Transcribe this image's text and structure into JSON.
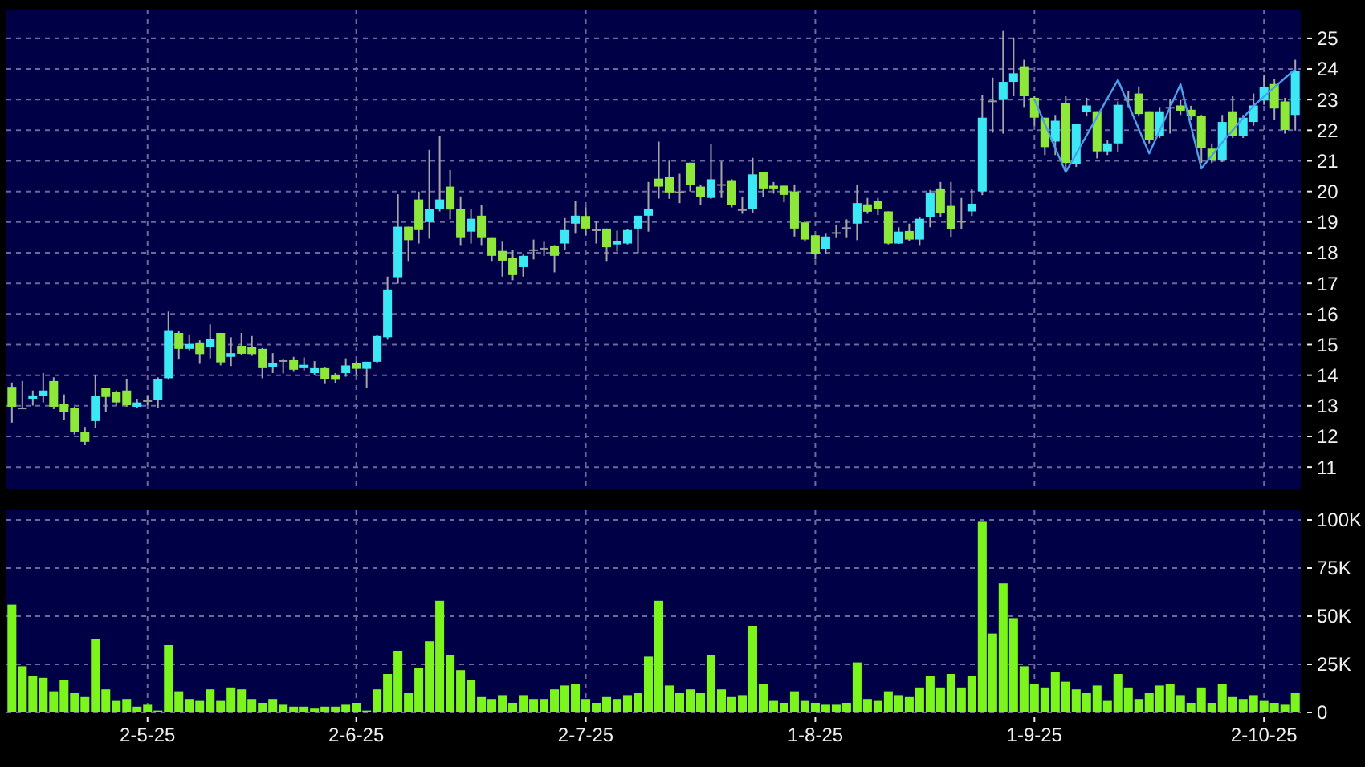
{
  "chart_data": [
    {
      "type": "candlestick",
      "grid": true,
      "ylim": [
        10.27,
        25.94
      ],
      "yticks": [
        11,
        12,
        13,
        14,
        15,
        16,
        17,
        18,
        19,
        20,
        21,
        22,
        23,
        24,
        25
      ],
      "categories": [
        null,
        null,
        null,
        null,
        null,
        null,
        null,
        null,
        null,
        null,
        null,
        null,
        null,
        null,
        null,
        null,
        null,
        null,
        null,
        null,
        null,
        null,
        null,
        null,
        null,
        null,
        null,
        null,
        null,
        null,
        null,
        null,
        null,
        null,
        null,
        null,
        null,
        null,
        null,
        null,
        null,
        null,
        null,
        null,
        null,
        null,
        null,
        null,
        null,
        null,
        null,
        null,
        null,
        null,
        null,
        null,
        null,
        null,
        null,
        null,
        null,
        null,
        null,
        null,
        null,
        null,
        null,
        null,
        null,
        null,
        null,
        null,
        null,
        null,
        null,
        null,
        null,
        null,
        null,
        null,
        null,
        null,
        null,
        null,
        null,
        null,
        null,
        null,
        null,
        null,
        null,
        null,
        null,
        null,
        null,
        null,
        null,
        null,
        null,
        null,
        null,
        null,
        null,
        null,
        null,
        null,
        null,
        null,
        null,
        null,
        null,
        null,
        null,
        null,
        null,
        null,
        null,
        null,
        null,
        null,
        null,
        null,
        null,
        null
      ],
      "series": [
        {
          "ohlc": [
            [
              13.62,
              13.76,
              12.45,
              12.97
            ],
            [
              12.94,
              13.81,
              12.89,
              12.94
            ],
            [
              13.23,
              13.5,
              13.01,
              13.34
            ],
            [
              13.32,
              14.07,
              13.11,
              13.5
            ],
            [
              13.81,
              13.93,
              12.89,
              12.97
            ],
            [
              13.06,
              13.37,
              12.53,
              12.8
            ],
            [
              12.92,
              12.97,
              12.06,
              12.13
            ],
            [
              12.13,
              12.31,
              11.71,
              11.82
            ],
            [
              12.5,
              14.02,
              12.27,
              13.32
            ],
            [
              13.58,
              13.58,
              12.8,
              13.29
            ],
            [
              13.46,
              13.5,
              13.02,
              13.11
            ],
            [
              13.5,
              13.88,
              12.97,
              13.02
            ],
            [
              12.97,
              13.23,
              12.94,
              13.11
            ],
            [
              13.18,
              13.32,
              13.02,
              13.18
            ],
            [
              13.18,
              13.93,
              12.94,
              13.86
            ],
            [
              13.9,
              16.08,
              13.85,
              15.47
            ],
            [
              15.38,
              15.45,
              14.51,
              14.86
            ],
            [
              14.86,
              15.33,
              14.81,
              15.02
            ],
            [
              15.07,
              15.14,
              14.37,
              14.69
            ],
            [
              14.91,
              15.66,
              14.55,
              15.19
            ],
            [
              15.38,
              15.38,
              14.32,
              14.42
            ],
            [
              14.6,
              15.24,
              14.3,
              14.72
            ],
            [
              14.96,
              15.38,
              14.65,
              14.7
            ],
            [
              14.91,
              15.28,
              14.63,
              14.69
            ],
            [
              14.86,
              14.89,
              13.9,
              14.23
            ],
            [
              14.28,
              14.72,
              14.07,
              14.39
            ],
            [
              14.49,
              14.51,
              14.06,
              14.49
            ],
            [
              14.49,
              14.6,
              14.11,
              14.18
            ],
            [
              14.23,
              14.58,
              14.16,
              14.34
            ],
            [
              14.07,
              14.46,
              14.02,
              14.23
            ],
            [
              14.23,
              14.27,
              13.71,
              13.86
            ],
            [
              14.02,
              14.07,
              13.74,
              13.85
            ],
            [
              14.07,
              14.55,
              13.95,
              14.32
            ],
            [
              14.39,
              14.46,
              14.02,
              14.21
            ],
            [
              14.21,
              14.44,
              13.58,
              14.44
            ],
            [
              14.44,
              15.33,
              14.41,
              15.28
            ],
            [
              15.24,
              17.22,
              15.16,
              16.8
            ],
            [
              17.2,
              19.91,
              16.99,
              18.85
            ],
            [
              18.85,
              18.85,
              17.73,
              18.41
            ],
            [
              19.74,
              20.0,
              18.3,
              18.74
            ],
            [
              19.0,
              21.36,
              18.46,
              19.42
            ],
            [
              19.42,
              21.8,
              19.35,
              19.74
            ],
            [
              20.16,
              20.7,
              19.09,
              19.41
            ],
            [
              19.42,
              19.84,
              18.25,
              18.48
            ],
            [
              18.69,
              19.44,
              18.3,
              19.11
            ],
            [
              19.21,
              19.55,
              18.25,
              18.48
            ],
            [
              18.48,
              18.48,
              17.73,
              17.9
            ],
            [
              18.06,
              18.36,
              17.22,
              17.74
            ],
            [
              17.83,
              18.08,
              17.1,
              17.27
            ],
            [
              17.53,
              17.94,
              17.22,
              17.9
            ],
            [
              18.11,
              18.43,
              17.78,
              18.11
            ],
            [
              18.16,
              18.36,
              17.9,
              18.16
            ],
            [
              18.22,
              18.25,
              17.36,
              17.9
            ],
            [
              18.3,
              19.13,
              18.09,
              18.74
            ],
            [
              18.95,
              19.7,
              18.62,
              19.21
            ],
            [
              19.2,
              19.49,
              18.57,
              18.79
            ],
            [
              18.76,
              19.04,
              18.3,
              18.76
            ],
            [
              18.79,
              18.79,
              17.73,
              18.18
            ],
            [
              18.27,
              18.72,
              18.04,
              18.37
            ],
            [
              18.3,
              18.78,
              18.27,
              18.74
            ],
            [
              18.79,
              19.21,
              17.99,
              19.21
            ],
            [
              19.21,
              20.31,
              18.69,
              19.42
            ],
            [
              20.42,
              21.63,
              19.77,
              20.16
            ],
            [
              20.47,
              21.01,
              19.76,
              19.97
            ],
            [
              20.0,
              20.58,
              19.62,
              20.0
            ],
            [
              20.94,
              20.94,
              20.0,
              20.21
            ],
            [
              20.16,
              20.23,
              19.56,
              19.81
            ],
            [
              19.79,
              21.54,
              19.76,
              20.4
            ],
            [
              20.24,
              20.98,
              19.79,
              20.24
            ],
            [
              20.37,
              20.4,
              19.48,
              19.56
            ],
            [
              19.42,
              19.82,
              19.27,
              19.42
            ],
            [
              19.42,
              21.1,
              19.3,
              20.56
            ],
            [
              20.63,
              20.63,
              19.82,
              20.1
            ],
            [
              20.19,
              20.31,
              19.93,
              20.1
            ],
            [
              20.19,
              20.19,
              19.65,
              19.89
            ],
            [
              20.0,
              20.23,
              18.53,
              18.79
            ],
            [
              18.99,
              19.02,
              18.36,
              18.43
            ],
            [
              18.57,
              18.57,
              17.78,
              17.95
            ],
            [
              18.13,
              18.62,
              17.95,
              18.53
            ],
            [
              18.67,
              18.92,
              18.48,
              18.67
            ],
            [
              18.83,
              19.09,
              18.48,
              18.83
            ],
            [
              18.95,
              20.23,
              18.41,
              19.62
            ],
            [
              19.58,
              19.79,
              19.27,
              19.34
            ],
            [
              19.69,
              19.79,
              19.23,
              19.44
            ],
            [
              19.35,
              19.35,
              18.27,
              18.3
            ],
            [
              18.3,
              18.83,
              18.29,
              18.69
            ],
            [
              18.71,
              18.95,
              18.39,
              18.43
            ],
            [
              18.43,
              19.18,
              18.25,
              19.11
            ],
            [
              19.16,
              20.05,
              18.83,
              19.97
            ],
            [
              20.1,
              20.31,
              19.18,
              19.3
            ],
            [
              19.53,
              20.31,
              18.51,
              18.78
            ],
            [
              19.04,
              19.79,
              18.78,
              19.04
            ],
            [
              19.35,
              20.09,
              19.2,
              19.6
            ],
            [
              20.0,
              23.15,
              19.88,
              22.41
            ],
            [
              22.97,
              23.72,
              21.92,
              22.97
            ],
            [
              22.99,
              25.24,
              21.89,
              23.58
            ],
            [
              23.58,
              25.03,
              23.11,
              23.86
            ],
            [
              24.09,
              24.3,
              22.76,
              23.11
            ],
            [
              23.06,
              23.11,
              22.15,
              22.41
            ],
            [
              22.41,
              22.41,
              21.19,
              21.45
            ],
            [
              21.63,
              22.5,
              21.19,
              22.31
            ],
            [
              22.88,
              23.11,
              20.66,
              20.93
            ],
            [
              20.89,
              22.2,
              20.8,
              22.2
            ],
            [
              22.59,
              23.06,
              22.45,
              22.81
            ],
            [
              22.62,
              22.62,
              21.08,
              21.31
            ],
            [
              21.31,
              21.68,
              21.19,
              21.57
            ],
            [
              21.57,
              22.94,
              21.28,
              22.83
            ],
            [
              23.02,
              23.29,
              22.76,
              23.02
            ],
            [
              23.2,
              23.43,
              22.45,
              22.53
            ],
            [
              22.62,
              22.62,
              21.57,
              21.68
            ],
            [
              21.8,
              22.76,
              21.75,
              22.62
            ],
            [
              22.76,
              23.02,
              21.89,
              22.76
            ],
            [
              22.81,
              22.99,
              22.5,
              22.64
            ],
            [
              22.67,
              22.8,
              22.33,
              22.45
            ],
            [
              22.48,
              22.5,
              20.93,
              21.42
            ],
            [
              21.4,
              21.57,
              20.93,
              21.01
            ],
            [
              21.01,
              22.5,
              20.96,
              22.27
            ],
            [
              22.62,
              23.11,
              21.75,
              21.8
            ],
            [
              21.8,
              22.5,
              21.75,
              22.41
            ],
            [
              22.27,
              23.2,
              22.15,
              22.81
            ],
            [
              22.97,
              23.81,
              22.83,
              23.41
            ],
            [
              23.51,
              23.67,
              22.33,
              22.71
            ],
            [
              22.94,
              23.06,
              21.89,
              22.01
            ],
            [
              22.5,
              24.3,
              21.99,
              23.93
            ]
          ],
          "colors": [
            "#8ee83a",
            "#9a9a9a",
            "#3de8f5",
            "#3de8f5",
            "#8ee83a",
            "#8ee83a",
            "#8ee83a",
            "#8ee83a",
            "#3de8f5",
            "#8ee83a",
            "#8ee83a",
            "#8ee83a",
            "#3de8f5",
            "#9a9a9a",
            "#3de8f5",
            "#3de8f5",
            "#8ee83a",
            "#3de8f5",
            "#8ee83a",
            "#3de8f5",
            "#8ee83a",
            "#3de8f5",
            "#8ee83a",
            "#8ee83a",
            "#8ee83a",
            "#3de8f5",
            "#9a9a9a",
            "#8ee83a",
            "#3de8f5",
            "#3de8f5",
            "#8ee83a",
            "#8ee83a",
            "#3de8f5",
            "#8ee83a",
            "#3de8f5",
            "#3de8f5",
            "#3de8f5",
            "#3de8f5",
            "#8ee83a",
            "#8ee83a",
            "#3de8f5",
            "#3de8f5",
            "#8ee83a",
            "#8ee83a",
            "#3de8f5",
            "#8ee83a",
            "#8ee83a",
            "#8ee83a",
            "#8ee83a",
            "#3de8f5",
            "#9a9a9a",
            "#9a9a9a",
            "#8ee83a",
            "#3de8f5",
            "#3de8f5",
            "#8ee83a",
            "#9a9a9a",
            "#8ee83a",
            "#3de8f5",
            "#3de8f5",
            "#3de8f5",
            "#3de8f5",
            "#8ee83a",
            "#8ee83a",
            "#9a9a9a",
            "#8ee83a",
            "#8ee83a",
            "#3de8f5",
            "#9a9a9a",
            "#8ee83a",
            "#9a9a9a",
            "#3de8f5",
            "#8ee83a",
            "#8ee83a",
            "#8ee83a",
            "#8ee83a",
            "#8ee83a",
            "#8ee83a",
            "#3de8f5",
            "#9a9a9a",
            "#9a9a9a",
            "#3de8f5",
            "#8ee83a",
            "#8ee83a",
            "#8ee83a",
            "#3de8f5",
            "#8ee83a",
            "#3de8f5",
            "#3de8f5",
            "#8ee83a",
            "#8ee83a",
            "#9a9a9a",
            "#3de8f5",
            "#3de8f5",
            "#9a9a9a",
            "#3de8f5",
            "#3de8f5",
            "#8ee83a",
            "#8ee83a",
            "#8ee83a",
            "#3de8f5",
            "#8ee83a",
            "#3de8f5",
            "#3de8f5",
            "#8ee83a",
            "#3de8f5",
            "#3de8f5",
            "#9a9a9a",
            "#8ee83a",
            "#8ee83a",
            "#3de8f5",
            "#9a9a9a",
            "#8ee83a",
            "#8ee83a",
            "#8ee83a",
            "#8ee83a",
            "#3de8f5",
            "#8ee83a",
            "#3de8f5",
            "#3de8f5",
            "#3de8f5",
            "#8ee83a",
            "#8ee83a",
            "#3de8f5"
          ]
        },
        {
          "type": "line",
          "color": "#4a9eea",
          "values": [
            null,
            null,
            null,
            null,
            null,
            null,
            null,
            null,
            null,
            null,
            null,
            null,
            null,
            null,
            null,
            null,
            null,
            null,
            null,
            null,
            null,
            null,
            null,
            null,
            null,
            null,
            null,
            null,
            null,
            null,
            null,
            null,
            null,
            null,
            null,
            null,
            null,
            null,
            null,
            null,
            null,
            null,
            null,
            null,
            null,
            null,
            null,
            null,
            null,
            null,
            null,
            null,
            null,
            null,
            null,
            null,
            null,
            null,
            null,
            null,
            null,
            null,
            null,
            null,
            null,
            null,
            null,
            null,
            null,
            null,
            null,
            null,
            null,
            null,
            null,
            null,
            null,
            null,
            null,
            null,
            null,
            null,
            null,
            null,
            null,
            null,
            null,
            null,
            null,
            null,
            null,
            null,
            null,
            null,
            null,
            null,
            null,
            null,
            23.0,
            22.21,
            21.42,
            20.63,
            21.23,
            21.83,
            22.44,
            23.04,
            23.64,
            22.84,
            22.04,
            21.24,
            21.99,
            22.75,
            23.5,
            22.13,
            20.75,
            21.18,
            21.6,
            22.0,
            22.4,
            22.8,
            23.1,
            23.4,
            23.7,
            23.99
          ]
        }
      ]
    },
    {
      "type": "bar",
      "grid": true,
      "color": "#7cf51c",
      "ylim": [
        0,
        105000
      ],
      "yticks": [
        {
          "value": 0,
          "label": "0"
        },
        {
          "value": 25000,
          "label": "25K"
        },
        {
          "value": 50000,
          "label": "50K"
        },
        {
          "value": 75000,
          "label": "75K"
        },
        {
          "value": 100000,
          "label": "100K"
        }
      ],
      "categories": [
        null,
        null,
        null,
        null,
        null,
        null,
        null,
        null,
        null,
        null,
        null,
        null,
        null,
        "2-5-25",
        null,
        null,
        null,
        null,
        null,
        null,
        null,
        null,
        null,
        null,
        null,
        null,
        null,
        null,
        null,
        null,
        null,
        null,
        null,
        "2-6-25",
        null,
        null,
        null,
        null,
        null,
        null,
        null,
        null,
        null,
        null,
        null,
        null,
        null,
        null,
        null,
        null,
        null,
        null,
        null,
        null,
        null,
        "2-7-25",
        null,
        null,
        null,
        null,
        null,
        null,
        null,
        null,
        null,
        null,
        null,
        null,
        null,
        null,
        null,
        null,
        null,
        null,
        null,
        null,
        null,
        "1-8-25",
        null,
        null,
        null,
        null,
        null,
        null,
        null,
        null,
        null,
        null,
        null,
        null,
        null,
        null,
        null,
        null,
        null,
        null,
        null,
        null,
        "1-9-25",
        null,
        null,
        null,
        null,
        null,
        null,
        null,
        null,
        null,
        null,
        null,
        null,
        null,
        null,
        null,
        null,
        null,
        null,
        null,
        null,
        null,
        "2-10-25",
        null,
        null,
        null
      ],
      "values": [
        56000,
        24000,
        19000,
        18000,
        11000,
        17000,
        10000,
        8000,
        38000,
        12000,
        6000,
        7000,
        3000,
        4000,
        1000,
        35000,
        11000,
        7000,
        6000,
        12000,
        6000,
        13000,
        12000,
        7000,
        5000,
        7000,
        4000,
        3000,
        3000,
        2000,
        3000,
        3000,
        4000,
        5000,
        1000,
        12000,
        20000,
        32000,
        10000,
        23000,
        37000,
        58000,
        30000,
        22000,
        17000,
        8000,
        7000,
        9000,
        5000,
        9000,
        7000,
        7000,
        12000,
        14000,
        15000,
        7000,
        5000,
        8000,
        7000,
        9000,
        10000,
        29000,
        58000,
        14000,
        10000,
        12000,
        10000,
        30000,
        12000,
        8000,
        9000,
        45000,
        15000,
        6000,
        5000,
        11000,
        6000,
        5000,
        4000,
        4000,
        5000,
        26000,
        7000,
        6000,
        11000,
        9000,
        8000,
        13000,
        19000,
        13000,
        20000,
        13000,
        19000,
        99000,
        41000,
        67000,
        49000,
        24000,
        15000,
        13000,
        21000,
        16000,
        12000,
        10000,
        14000,
        6000,
        20000,
        13000,
        7000,
        10000,
        14000,
        15000,
        9000,
        5000,
        13000,
        5000,
        15000,
        8000,
        7000,
        9000,
        6000,
        5000,
        4000,
        10000
      ]
    }
  ]
}
